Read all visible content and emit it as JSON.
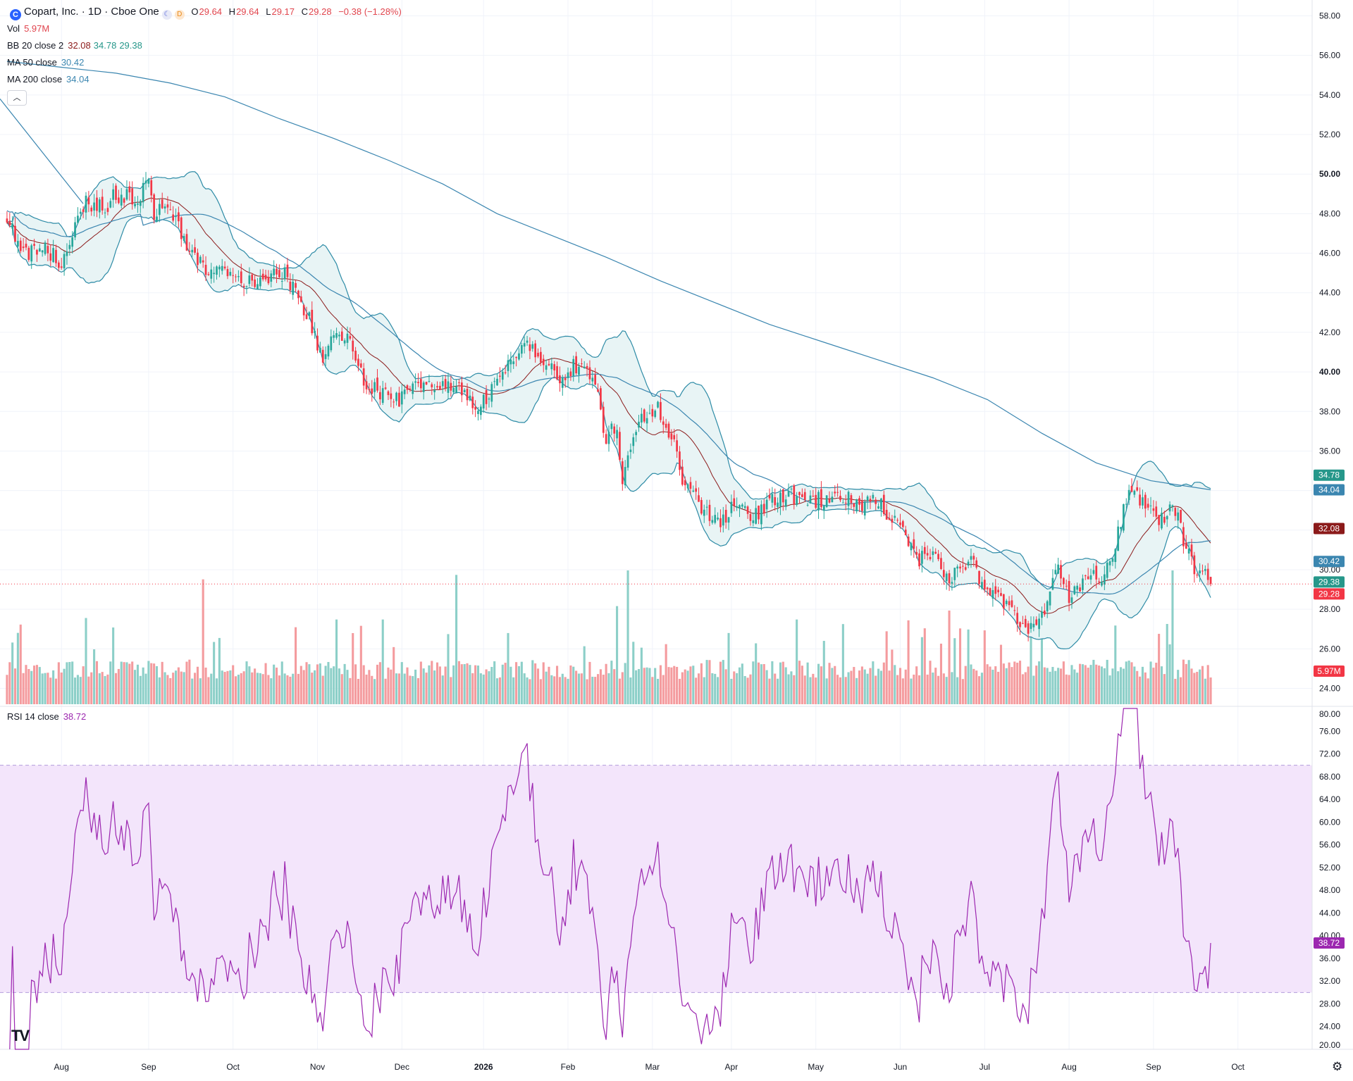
{
  "header": {
    "symbol_icon": "C",
    "title": "Copart, Inc. · 1D · Cboe One",
    "session_icon": "moon-icon",
    "delay_icon": "D",
    "o_label": "O",
    "o_value": "29.64",
    "h_label": "H",
    "h_value": "29.64",
    "l_label": "L",
    "l_value": "29.17",
    "c_label": "C",
    "c_value": "29.28",
    "change": "−0.38 (−1.28%)"
  },
  "indicators": {
    "vol": {
      "label": "Vol",
      "value": "5.97M"
    },
    "bb": {
      "label": "BB 20 close 2",
      "basis": "32.08",
      "upper": "34.78",
      "lower": "29.38"
    },
    "ma50": {
      "label": "MA 50 close",
      "value": "30.42"
    },
    "ma200": {
      "label": "MA 200 close",
      "value": "34.04"
    },
    "rsi": {
      "label": "RSI 14 close",
      "value": "38.72"
    }
  },
  "collapse_icon": "chevron-up-icon",
  "logo_text": "TV",
  "settings_icon": "gear-icon",
  "colors": {
    "up": "#26a69a",
    "down": "#f23645",
    "vol_up": "#8ccfc8",
    "vol_down": "#f49b9e",
    "bb": "#2d8ba6",
    "bb_fill": "#e8f4f5",
    "basis": "#8b1a1a",
    "ma50": "#3b86b0",
    "ma200": "#3b86b0",
    "rsi": "#9c27b0",
    "rsi_band": "#f3e5fb",
    "last": "#f23645"
  },
  "chart_data": [
    {
      "type": "candlestick",
      "title": "Copart, Inc. · 1D · Cboe One",
      "price_axis_ticks": [
        "58.00",
        "56.00",
        "54.00",
        "52.00",
        "50.00",
        "48.00",
        "46.00",
        "44.00",
        "42.00",
        "40.00",
        "38.00",
        "36.00",
        "34.00",
        "32.00",
        "30.00",
        "28.00",
        "26.00",
        "24.00"
      ],
      "bold_ticks": [
        "50.00",
        "40.00"
      ],
      "ylim": [
        23.2,
        58.8
      ],
      "time_axis_ticks": [
        {
          "label": "Aug",
          "day": 20
        },
        {
          "label": "Sep",
          "day": 52
        },
        {
          "label": "Oct",
          "day": 83
        },
        {
          "label": "Nov",
          "day": 114
        },
        {
          "label": "Dec",
          "day": 145
        },
        {
          "label": "2026",
          "day": 175,
          "bold": true
        },
        {
          "label": "Feb",
          "day": 206
        },
        {
          "label": "Mar",
          "day": 237
        },
        {
          "label": "Apr",
          "day": 266
        },
        {
          "label": "May",
          "day": 297
        },
        {
          "label": "Jun",
          "day": 328
        },
        {
          "label": "Jul",
          "day": 359
        },
        {
          "label": "Aug",
          "day": 390
        },
        {
          "label": "Sep",
          "day": 421
        },
        {
          "label": "Oct",
          "day": 452
        }
      ],
      "anchors": [
        [
          0,
          48.0
        ],
        [
          6,
          46.0
        ],
        [
          14,
          46.3
        ],
        [
          20,
          45.4
        ],
        [
          28,
          48.5
        ],
        [
          36,
          48.2
        ],
        [
          40,
          49.0
        ],
        [
          48,
          48.6
        ],
        [
          52,
          49.6
        ],
        [
          54,
          48.0
        ],
        [
          58,
          48.8
        ],
        [
          62,
          47.7
        ],
        [
          66,
          46.2
        ],
        [
          72,
          45.3
        ],
        [
          78,
          45.0
        ],
        [
          84,
          45.2
        ],
        [
          88,
          44.5
        ],
        [
          94,
          44.3
        ],
        [
          98,
          45.5
        ],
        [
          104,
          44.5
        ],
        [
          108,
          43.3
        ],
        [
          112,
          42.4
        ],
        [
          116,
          40.5
        ],
        [
          120,
          41.8
        ],
        [
          126,
          41.5
        ],
        [
          132,
          39.3
        ],
        [
          138,
          38.9
        ],
        [
          144,
          38.6
        ],
        [
          150,
          39.1
        ],
        [
          156,
          39.2
        ],
        [
          162,
          39.3
        ],
        [
          168,
          39.0
        ],
        [
          172,
          38.1
        ],
        [
          176,
          38.5
        ],
        [
          180,
          39.6
        ],
        [
          184,
          40.5
        ],
        [
          188,
          41.0
        ],
        [
          192,
          41.5
        ],
        [
          196,
          40.4
        ],
        [
          200,
          40.0
        ],
        [
          204,
          39.4
        ],
        [
          208,
          40.4
        ],
        [
          212,
          40.2
        ],
        [
          216,
          39.6
        ],
        [
          220,
          36.5
        ],
        [
          224,
          37.5
        ],
        [
          226,
          34.3
        ],
        [
          228,
          35.9
        ],
        [
          232,
          37.5
        ],
        [
          236,
          38.2
        ],
        [
          240,
          38.0
        ],
        [
          244,
          36.8
        ],
        [
          248,
          34.7
        ],
        [
          252,
          33.7
        ],
        [
          256,
          33.0
        ],
        [
          262,
          32.6
        ],
        [
          268,
          33.2
        ],
        [
          274,
          32.8
        ],
        [
          280,
          33.3
        ],
        [
          286,
          33.8
        ],
        [
          292,
          33.5
        ],
        [
          298,
          33.5
        ],
        [
          304,
          33.6
        ],
        [
          310,
          33.7
        ],
        [
          314,
          33.4
        ],
        [
          318,
          33.9
        ],
        [
          322,
          33.0
        ],
        [
          326,
          32.4
        ],
        [
          330,
          31.5
        ],
        [
          334,
          30.4
        ],
        [
          338,
          30.9
        ],
        [
          342,
          30.4
        ],
        [
          346,
          29.6
        ],
        [
          350,
          30.0
        ],
        [
          354,
          30.8
        ],
        [
          358,
          29.0
        ],
        [
          362,
          28.7
        ],
        [
          366,
          28.2
        ],
        [
          370,
          27.8
        ],
        [
          374,
          27.2
        ],
        [
          378,
          26.9
        ],
        [
          382,
          28.5
        ],
        [
          386,
          30.3
        ],
        [
          390,
          28.7
        ],
        [
          394,
          29.1
        ],
        [
          398,
          29.8
        ],
        [
          402,
          29.5
        ],
        [
          406,
          30.6
        ],
        [
          410,
          33.0
        ],
        [
          413,
          34.3
        ],
        [
          416,
          33.6
        ],
        [
          420,
          32.8
        ],
        [
          424,
          32.6
        ],
        [
          428,
          33.4
        ],
        [
          432,
          31.5
        ],
        [
          436,
          30.2
        ],
        [
          440,
          29.6
        ],
        [
          442,
          29.28
        ]
      ],
      "bb": {
        "length": 20,
        "mult": 2,
        "last": {
          "basis": 32.08,
          "upper": 34.78,
          "lower": 29.38
        }
      },
      "ma": [
        {
          "name": "MA 50 close",
          "last": 30.42
        },
        {
          "name": "MA 200 close",
          "last": 34.04,
          "path": [
            [
              0,
              55.7
            ],
            [
              20,
              55.4
            ],
            [
              40,
              55.1
            ],
            [
              60,
              54.6
            ],
            [
              80,
              53.9
            ],
            [
              100,
              52.8
            ],
            [
              120,
              51.8
            ],
            [
              140,
              50.7
            ],
            [
              160,
              49.5
            ],
            [
              180,
              48.0
            ],
            [
              200,
              46.9
            ],
            [
              220,
              45.8
            ],
            [
              240,
              44.6
            ],
            [
              260,
              43.5
            ],
            [
              280,
              42.4
            ],
            [
              300,
              41.5
            ],
            [
              320,
              40.6
            ],
            [
              340,
              39.7
            ],
            [
              360,
              38.6
            ],
            [
              380,
              36.9
            ],
            [
              400,
              35.4
            ],
            [
              420,
              34.5
            ],
            [
              442,
              34.04
            ]
          ]
        }
      ],
      "price_badges": [
        {
          "value": "34.78",
          "color": "#26978a"
        },
        {
          "value": "34.04",
          "color": "#3b86b0"
        },
        {
          "value": "32.08",
          "color": "#8b1a1a"
        },
        {
          "value": "30.42",
          "color": "#3b86b0"
        },
        {
          "value": "29.38",
          "color": "#26978a"
        },
        {
          "value": "29.28",
          "color": "#f23645"
        },
        {
          "value": "5.97M",
          "color": "#f23645"
        }
      ],
      "last_price": 29.28,
      "volume_last": "5.97M",
      "volume_spikes": [
        [
          4,
          0.8
        ],
        [
          72,
          1.4
        ],
        [
          121,
          0.95
        ],
        [
          138,
          0.95
        ],
        [
          165,
          1.45
        ],
        [
          224,
          1.1
        ],
        [
          228,
          1.5
        ],
        [
          230,
          0.7
        ],
        [
          290,
          0.95
        ],
        [
          346,
          1.05
        ],
        [
          350,
          0.85
        ],
        [
          380,
          0.9
        ],
        [
          426,
          0.9
        ],
        [
          428,
          1.5
        ]
      ]
    },
    {
      "type": "line",
      "title": "RSI 14 close",
      "series": [
        {
          "name": "RSI 14 close",
          "last": 38.72
        }
      ],
      "ylim": [
        20,
        80
      ],
      "axis_ticks": [
        "80.00",
        "76.00",
        "72.00",
        "68.00",
        "64.00",
        "60.00",
        "56.00",
        "52.00",
        "48.00",
        "44.00",
        "40.00",
        "36.00",
        "32.00",
        "28.00",
        "24.00",
        "20.00"
      ],
      "bands": [
        30,
        70
      ],
      "last_badge": "38.72"
    }
  ]
}
